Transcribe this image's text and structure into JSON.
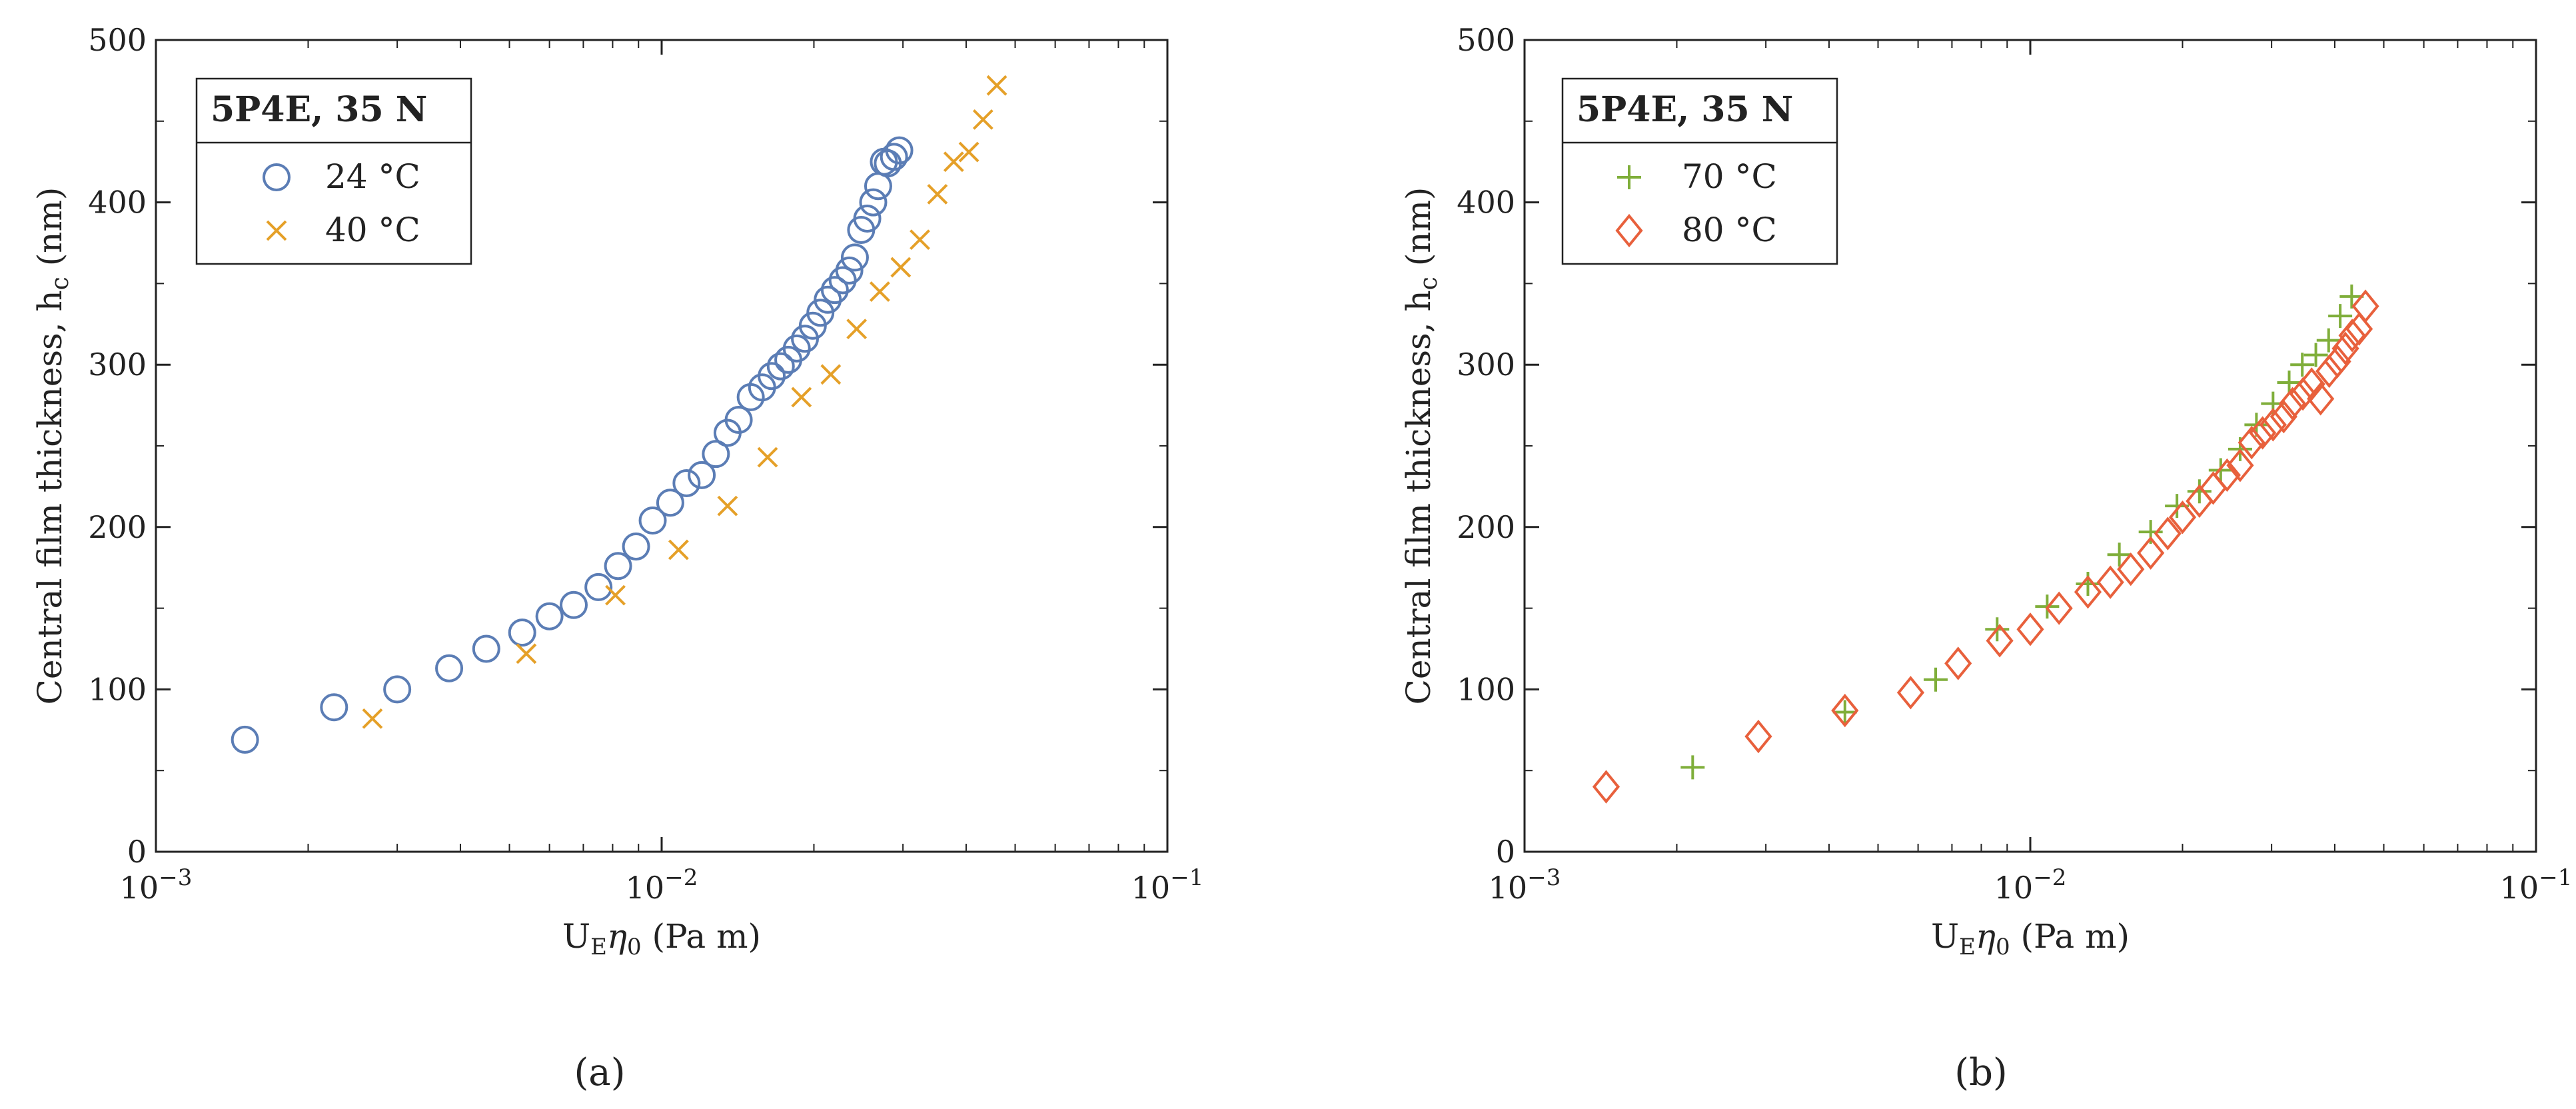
{
  "chart_data": [
    {
      "type": "scatter",
      "panel_label": "(a)",
      "xlabel": "U<sub>E</sub>η<sub>0</sub> (Pa m)",
      "xlabel_text": {
        "main": "U",
        "sub1": "E",
        "eta": "η",
        "sub2": "0",
        "units": " (Pa m)"
      },
      "ylabel_text": {
        "main": "Central film thickness, h",
        "sub": "c",
        "units": " (nm)"
      },
      "xscale": "log",
      "xlim": [
        0.001,
        0.1
      ],
      "ylim": [
        0,
        500
      ],
      "x_ticks": [
        {
          "base": "10",
          "exp": "−3"
        },
        {
          "base": "10",
          "exp": "−2"
        },
        {
          "base": "10",
          "exp": "−1"
        }
      ],
      "y_ticks": [
        "0",
        "100",
        "200",
        "300",
        "400",
        "500"
      ],
      "legend": {
        "title": "5P4E, 35 N",
        "position": "top-left"
      },
      "series": [
        {
          "name": "24 °C",
          "marker": "circle",
          "color": "#5b7db5",
          "x": [
            0.0015,
            0.00225,
            0.003,
            0.0038,
            0.0045,
            0.0053,
            0.006,
            0.0067,
            0.0075,
            0.0082,
            0.0089,
            0.0096,
            0.0104,
            0.0112,
            0.012,
            0.0128,
            0.0135,
            0.0142,
            0.015,
            0.0158,
            0.0165,
            0.0172,
            0.0178,
            0.0185,
            0.0192,
            0.0199,
            0.0206,
            0.0213,
            0.022,
            0.0228,
            0.0235,
            0.0241,
            0.0248,
            0.0255,
            0.0262,
            0.0268,
            0.0275,
            0.028,
            0.0288,
            0.0295
          ],
          "y": [
            69,
            89,
            100,
            113,
            125,
            135,
            145,
            152,
            163,
            176,
            188,
            204,
            215,
            227,
            232,
            245,
            258,
            266,
            280,
            286,
            293,
            299,
            303,
            310,
            316,
            324,
            332,
            340,
            346,
            352,
            358,
            366,
            383,
            390,
            400,
            410,
            425,
            424,
            428,
            432
          ]
        },
        {
          "name": "40 °C",
          "marker": "x",
          "color": "#e5a028",
          "x": [
            0.00268,
            0.0054,
            0.0081,
            0.0108,
            0.0135,
            0.0162,
            0.0189,
            0.0216,
            0.0243,
            0.027,
            0.0297,
            0.0324,
            0.0351,
            0.0378,
            0.0405,
            0.0432,
            0.046
          ],
          "y": [
            82,
            122,
            158,
            186,
            213,
            243,
            280,
            294,
            322,
            345,
            360,
            377,
            405,
            425,
            431,
            451,
            472
          ]
        }
      ]
    },
    {
      "type": "scatter",
      "panel_label": "(b)",
      "xlabel_text": {
        "main": "U",
        "sub1": "E",
        "eta": "η",
        "sub2": "0",
        "units": " (Pa m)"
      },
      "ylabel_text": {
        "main": "Central film thickness, h",
        "sub": "c",
        "units": " (nm)"
      },
      "xscale": "log",
      "xlim": [
        0.001,
        0.1
      ],
      "ylim": [
        0,
        500
      ],
      "x_ticks": [
        {
          "base": "10",
          "exp": "−3"
        },
        {
          "base": "10",
          "exp": "−2"
        },
        {
          "base": "10",
          "exp": "−1"
        }
      ],
      "y_ticks": [
        "0",
        "100",
        "200",
        "300",
        "400",
        "500"
      ],
      "legend": {
        "title": "5P4E, 35 N",
        "position": "top-left"
      },
      "series": [
        {
          "name": "70 °C",
          "marker": "plus",
          "color": "#7fae3a",
          "x": [
            0.00215,
            0.0043,
            0.0065,
            0.0086,
            0.0108,
            0.013,
            0.015,
            0.0173,
            0.0195,
            0.0216,
            0.0238,
            0.026,
            0.028,
            0.0302,
            0.0325,
            0.0345,
            0.0367,
            0.0389,
            0.041,
            0.0432
          ],
          "y": [
            52,
            86,
            106,
            137,
            151,
            165,
            183,
            197,
            213,
            222,
            235,
            248,
            263,
            276,
            289,
            300,
            306,
            315,
            330,
            342
          ]
        },
        {
          "name": "80 °C",
          "marker": "diamond",
          "color": "#e8603c",
          "x": [
            0.00145,
            0.0029,
            0.0043,
            0.0058,
            0.0072,
            0.0087,
            0.01,
            0.0114,
            0.013,
            0.0144,
            0.0158,
            0.0173,
            0.0187,
            0.02,
            0.0216,
            0.023,
            0.0245,
            0.026,
            0.0274,
            0.0288,
            0.0302,
            0.0317,
            0.033,
            0.0346,
            0.036,
            0.0375,
            0.039,
            0.0405,
            0.042,
            0.0433,
            0.0447,
            0.046
          ],
          "y": [
            40,
            71,
            87,
            98,
            116,
            130,
            137,
            150,
            160,
            166,
            174,
            184,
            196,
            206,
            216,
            224,
            232,
            238,
            252,
            258,
            263,
            268,
            276,
            282,
            288,
            279,
            296,
            302,
            310,
            318,
            322,
            336
          ]
        }
      ]
    }
  ]
}
